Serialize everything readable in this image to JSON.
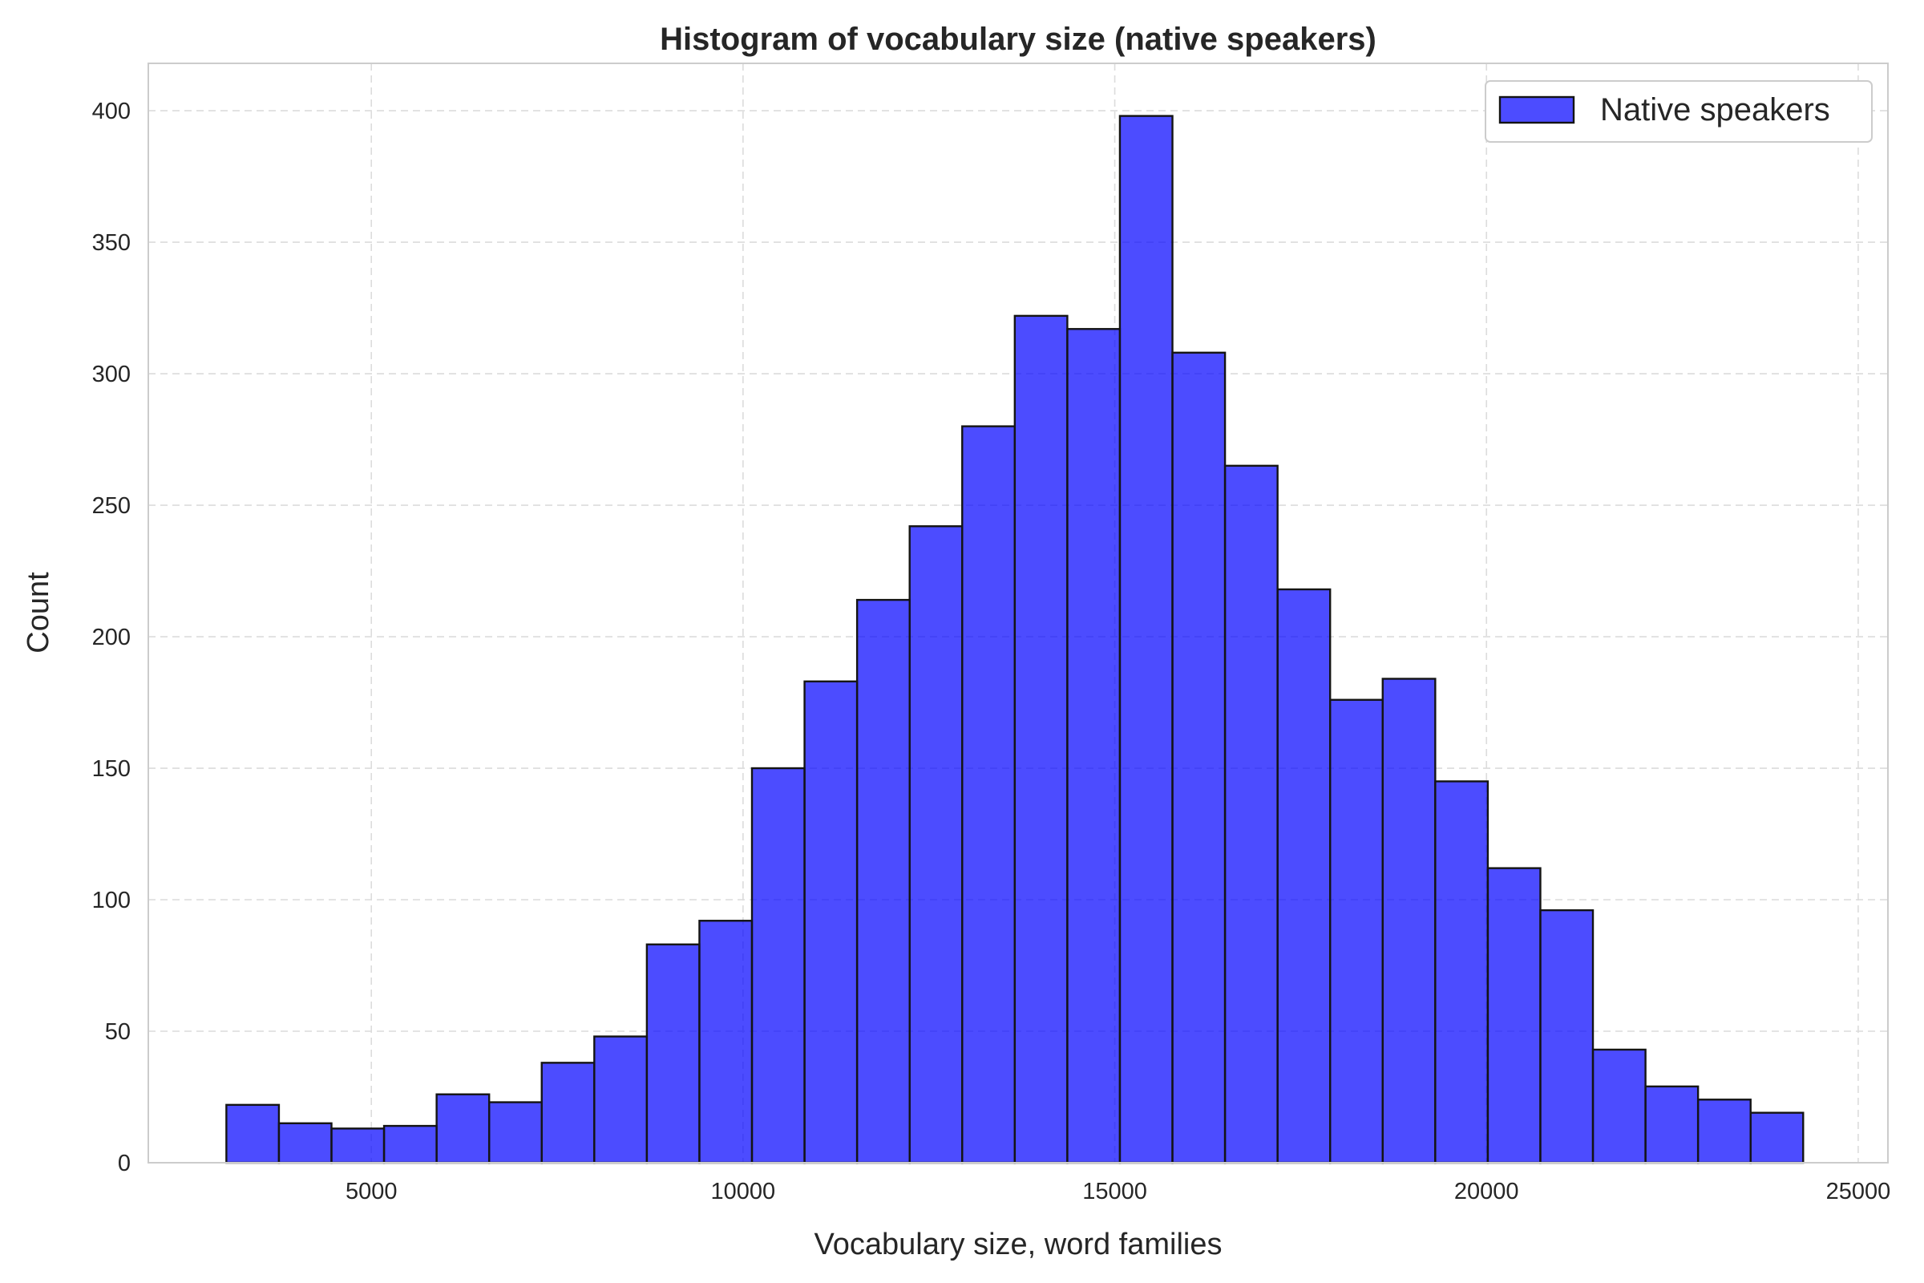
{
  "chart_data": {
    "type": "bar",
    "subtype": "histogram",
    "title": "Histogram of vocabulary size (native speakers)",
    "xlabel": "Vocabulary size, word families",
    "ylabel": "Count",
    "xlim": [
      2000,
      25400
    ],
    "ylim": [
      0,
      418
    ],
    "xticks": [
      5000,
      10000,
      15000,
      20000,
      25000
    ],
    "yticks": [
      0,
      50,
      100,
      150,
      200,
      250,
      300,
      350,
      400
    ],
    "grid": true,
    "legend": {
      "position": "top-right"
    },
    "series": [
      {
        "name": "Native speakers",
        "color": "#0000ff",
        "opacity": 0.7,
        "edge_color": "#141414",
        "bin_edges": [
          3050,
          3757,
          4464,
          5171,
          5878,
          6585,
          7292,
          7999,
          8706,
          9413,
          10120,
          10827,
          11534,
          12241,
          12948,
          13655,
          14362,
          15069,
          15776,
          16483,
          17190,
          17897,
          18604,
          19311,
          20018,
          20725,
          21432,
          22139,
          22846,
          23553,
          24260
        ],
        "counts": [
          22,
          15,
          13,
          14,
          26,
          23,
          38,
          48,
          83,
          92,
          150,
          183,
          214,
          242,
          280,
          322,
          317,
          398,
          308,
          265,
          218,
          176,
          184,
          145,
          112,
          96,
          43,
          29,
          24,
          19
        ]
      }
    ]
  }
}
